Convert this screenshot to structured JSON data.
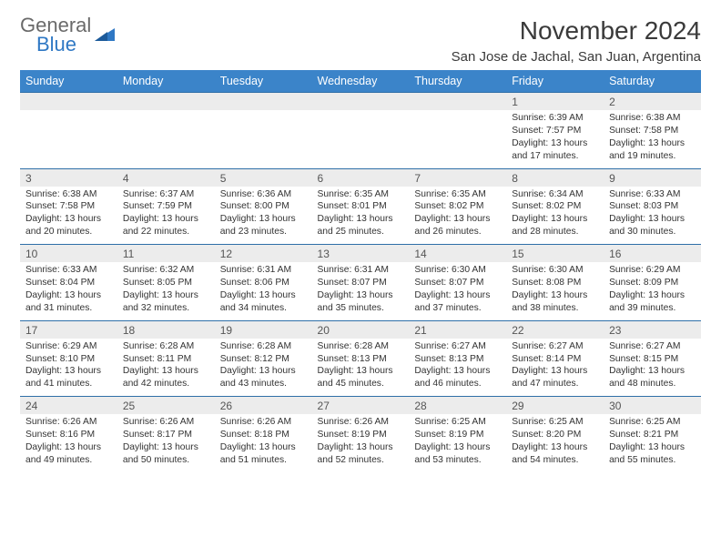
{
  "brand": {
    "top": "General",
    "bottom": "Blue"
  },
  "title": "November 2024",
  "location": "San Jose de Jachal, San Juan, Argentina",
  "colors": {
    "header_bg": "#3b84c9",
    "header_text": "#ffffff",
    "daynum_bg": "#ececec",
    "row_divider": "#2f6fa8",
    "brand_gray": "#6a6a6a",
    "brand_blue": "#2f78c4",
    "page_bg": "#ffffff",
    "body_text": "#333333"
  },
  "typography": {
    "title_fontsize": 28,
    "location_fontsize": 15,
    "dow_fontsize": 12.5,
    "daynum_fontsize": 12,
    "detail_fontsize": 10.3,
    "logo_fontsize": 22
  },
  "dow": [
    "Sunday",
    "Monday",
    "Tuesday",
    "Wednesday",
    "Thursday",
    "Friday",
    "Saturday"
  ],
  "weeks": [
    [
      null,
      null,
      null,
      null,
      null,
      {
        "n": "1",
        "sunrise": "6:39 AM",
        "sunset": "7:57 PM",
        "daylight": "13 hours and 17 minutes."
      },
      {
        "n": "2",
        "sunrise": "6:38 AM",
        "sunset": "7:58 PM",
        "daylight": "13 hours and 19 minutes."
      }
    ],
    [
      {
        "n": "3",
        "sunrise": "6:38 AM",
        "sunset": "7:58 PM",
        "daylight": "13 hours and 20 minutes."
      },
      {
        "n": "4",
        "sunrise": "6:37 AM",
        "sunset": "7:59 PM",
        "daylight": "13 hours and 22 minutes."
      },
      {
        "n": "5",
        "sunrise": "6:36 AM",
        "sunset": "8:00 PM",
        "daylight": "13 hours and 23 minutes."
      },
      {
        "n": "6",
        "sunrise": "6:35 AM",
        "sunset": "8:01 PM",
        "daylight": "13 hours and 25 minutes."
      },
      {
        "n": "7",
        "sunrise": "6:35 AM",
        "sunset": "8:02 PM",
        "daylight": "13 hours and 26 minutes."
      },
      {
        "n": "8",
        "sunrise": "6:34 AM",
        "sunset": "8:02 PM",
        "daylight": "13 hours and 28 minutes."
      },
      {
        "n": "9",
        "sunrise": "6:33 AM",
        "sunset": "8:03 PM",
        "daylight": "13 hours and 30 minutes."
      }
    ],
    [
      {
        "n": "10",
        "sunrise": "6:33 AM",
        "sunset": "8:04 PM",
        "daylight": "13 hours and 31 minutes."
      },
      {
        "n": "11",
        "sunrise": "6:32 AM",
        "sunset": "8:05 PM",
        "daylight": "13 hours and 32 minutes."
      },
      {
        "n": "12",
        "sunrise": "6:31 AM",
        "sunset": "8:06 PM",
        "daylight": "13 hours and 34 minutes."
      },
      {
        "n": "13",
        "sunrise": "6:31 AM",
        "sunset": "8:07 PM",
        "daylight": "13 hours and 35 minutes."
      },
      {
        "n": "14",
        "sunrise": "6:30 AM",
        "sunset": "8:07 PM",
        "daylight": "13 hours and 37 minutes."
      },
      {
        "n": "15",
        "sunrise": "6:30 AM",
        "sunset": "8:08 PM",
        "daylight": "13 hours and 38 minutes."
      },
      {
        "n": "16",
        "sunrise": "6:29 AM",
        "sunset": "8:09 PM",
        "daylight": "13 hours and 39 minutes."
      }
    ],
    [
      {
        "n": "17",
        "sunrise": "6:29 AM",
        "sunset": "8:10 PM",
        "daylight": "13 hours and 41 minutes."
      },
      {
        "n": "18",
        "sunrise": "6:28 AM",
        "sunset": "8:11 PM",
        "daylight": "13 hours and 42 minutes."
      },
      {
        "n": "19",
        "sunrise": "6:28 AM",
        "sunset": "8:12 PM",
        "daylight": "13 hours and 43 minutes."
      },
      {
        "n": "20",
        "sunrise": "6:28 AM",
        "sunset": "8:13 PM",
        "daylight": "13 hours and 45 minutes."
      },
      {
        "n": "21",
        "sunrise": "6:27 AM",
        "sunset": "8:13 PM",
        "daylight": "13 hours and 46 minutes."
      },
      {
        "n": "22",
        "sunrise": "6:27 AM",
        "sunset": "8:14 PM",
        "daylight": "13 hours and 47 minutes."
      },
      {
        "n": "23",
        "sunrise": "6:27 AM",
        "sunset": "8:15 PM",
        "daylight": "13 hours and 48 minutes."
      }
    ],
    [
      {
        "n": "24",
        "sunrise": "6:26 AM",
        "sunset": "8:16 PM",
        "daylight": "13 hours and 49 minutes."
      },
      {
        "n": "25",
        "sunrise": "6:26 AM",
        "sunset": "8:17 PM",
        "daylight": "13 hours and 50 minutes."
      },
      {
        "n": "26",
        "sunrise": "6:26 AM",
        "sunset": "8:18 PM",
        "daylight": "13 hours and 51 minutes."
      },
      {
        "n": "27",
        "sunrise": "6:26 AM",
        "sunset": "8:19 PM",
        "daylight": "13 hours and 52 minutes."
      },
      {
        "n": "28",
        "sunrise": "6:25 AM",
        "sunset": "8:19 PM",
        "daylight": "13 hours and 53 minutes."
      },
      {
        "n": "29",
        "sunrise": "6:25 AM",
        "sunset": "8:20 PM",
        "daylight": "13 hours and 54 minutes."
      },
      {
        "n": "30",
        "sunrise": "6:25 AM",
        "sunset": "8:21 PM",
        "daylight": "13 hours and 55 minutes."
      }
    ]
  ],
  "labels": {
    "sunrise": "Sunrise:",
    "sunset": "Sunset:",
    "daylight": "Daylight:"
  }
}
